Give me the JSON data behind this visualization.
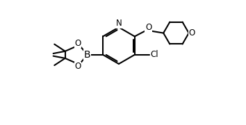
{
  "line_color": "#000000",
  "bg_color": "#ffffff",
  "line_width": 1.5,
  "font_size": 8.5,
  "xlim": [
    -3.2,
    3.5
  ],
  "ylim": [
    -2.8,
    1.6
  ]
}
